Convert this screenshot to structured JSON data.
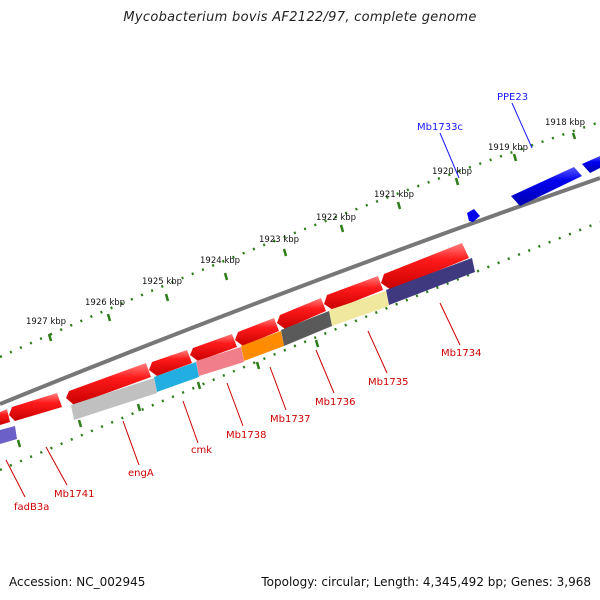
{
  "title": "Mycobacterium bovis AF2122/97, complete genome",
  "accession": "Accession: NC_002945",
  "topology": "Topology: circular; Length: 4,345,492 bp; Genes: 3,968",
  "colors": {
    "backbone": "#777777",
    "tick_green": "#2e7d1a",
    "forward_gene": "#0000e0",
    "reverse_gene": "#ee0000",
    "label_forward": "#1a1aff",
    "label_reverse": "#cc0000",
    "label_black": "#111111"
  },
  "scale_labels": [
    "1918 kbp",
    "1919 kbp",
    "1920 kbp",
    "1921 kbp",
    "1922 kbp",
    "1923 kbp",
    "1924 kbp",
    "1925 kbp",
    "1926 kbp",
    "1927 kbp"
  ],
  "forward_genes": [
    {
      "name": "PPE23",
      "label": "PPE23"
    },
    {
      "name": "Mb1733c",
      "label": "Mb1733c"
    }
  ],
  "reverse_gene_labels": [
    {
      "label": "Mb1734",
      "color": "#3f3a80"
    },
    {
      "label": "Mb1735",
      "color": "#f1e8a0"
    },
    {
      "label": "Mb1736",
      "color": "#5a5a5a"
    },
    {
      "label": "Mb1737",
      "color": "#ff8c00"
    },
    {
      "label": "Mb1738",
      "color": "#f07f89"
    },
    {
      "label": "cmk",
      "color": "#22aee0"
    },
    {
      "label": "engA",
      "color": "#c0c0c0"
    },
    {
      "label": "Mb1741",
      "color": "#ee0000"
    },
    {
      "label": "fadB3a",
      "color": "#6b5fc8"
    }
  ]
}
